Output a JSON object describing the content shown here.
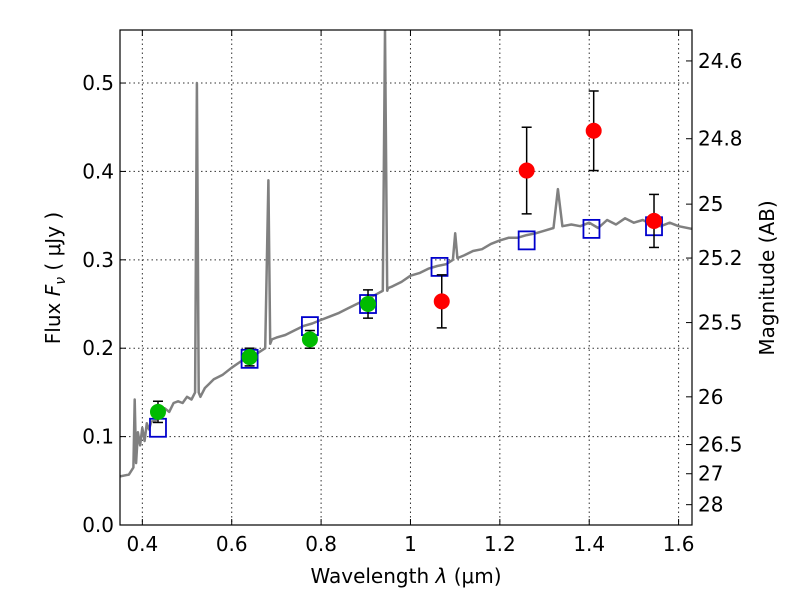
{
  "chart_data": {
    "type": "scatter",
    "title": "",
    "xlabel_text": "Wavelength",
    "xlabel_symbol": "λ",
    "xlabel_unit": "(μm)",
    "ylabel_text": "Flux",
    "ylabel_symbol": "F",
    "ylabel_subscript": "ν",
    "ylabel_unit": "( μJy )",
    "y2label": "Magnitude (AB)",
    "xlim": [
      0.35,
      1.63
    ],
    "ylim": [
      0.0,
      0.56
    ],
    "grid": true,
    "x_ticks": [
      {
        "value": 0.4,
        "label": "0.4"
      },
      {
        "value": 0.6,
        "label": "0.6"
      },
      {
        "value": 0.8,
        "label": "0.8"
      },
      {
        "value": 1.0,
        "label": "1"
      },
      {
        "value": 1.2,
        "label": "1.2"
      },
      {
        "value": 1.4,
        "label": "1.4"
      },
      {
        "value": 1.6,
        "label": "1.6"
      }
    ],
    "y_ticks": [
      {
        "value": 0.0,
        "label": "0.0"
      },
      {
        "value": 0.1,
        "label": "0.1"
      },
      {
        "value": 0.2,
        "label": "0.2"
      },
      {
        "value": 0.3,
        "label": "0.3"
      },
      {
        "value": 0.4,
        "label": "0.4"
      },
      {
        "value": 0.5,
        "label": "0.5"
      }
    ],
    "y2_ticks": [
      {
        "label": "24.6",
        "flux": 0.525
      },
      {
        "label": "24.8",
        "flux": 0.437
      },
      {
        "label": "25",
        "flux": 0.363
      },
      {
        "label": "25.2",
        "flux": 0.302
      },
      {
        "label": "25.5",
        "flux": 0.229
      },
      {
        "label": "26",
        "flux": 0.145
      },
      {
        "label": "26.5",
        "flux": 0.091
      },
      {
        "label": "27",
        "flux": 0.058
      },
      {
        "label": "28",
        "flux": 0.023
      }
    ],
    "series": [
      {
        "kind": "line",
        "color": "#808080",
        "x": [
          0.35,
          0.37,
          0.38,
          0.383,
          0.386,
          0.39,
          0.395,
          0.4,
          0.405,
          0.41,
          0.415,
          0.42,
          0.43,
          0.44,
          0.45,
          0.46,
          0.47,
          0.48,
          0.49,
          0.5,
          0.51,
          0.518,
          0.522,
          0.526,
          0.53,
          0.54,
          0.55,
          0.56,
          0.58,
          0.6,
          0.62,
          0.64,
          0.66,
          0.675,
          0.682,
          0.686,
          0.69,
          0.7,
          0.72,
          0.74,
          0.76,
          0.78,
          0.8,
          0.82,
          0.84,
          0.86,
          0.88,
          0.9,
          0.92,
          0.938,
          0.943,
          0.948,
          0.95,
          0.96,
          0.98,
          1.0,
          1.02,
          1.04,
          1.06,
          1.08,
          1.095,
          1.1,
          1.105,
          1.12,
          1.14,
          1.16,
          1.18,
          1.2,
          1.22,
          1.24,
          1.26,
          1.28,
          1.3,
          1.32,
          1.33,
          1.34,
          1.36,
          1.38,
          1.4,
          1.42,
          1.44,
          1.46,
          1.48,
          1.5,
          1.52,
          1.54,
          1.56,
          1.58,
          1.6,
          1.63
        ],
        "y": [
          0.055,
          0.057,
          0.065,
          0.142,
          0.07,
          0.105,
          0.09,
          0.11,
          0.095,
          0.115,
          0.108,
          0.117,
          0.118,
          0.13,
          0.132,
          0.128,
          0.138,
          0.14,
          0.138,
          0.145,
          0.142,
          0.15,
          0.5,
          0.15,
          0.145,
          0.155,
          0.16,
          0.165,
          0.17,
          0.178,
          0.185,
          0.19,
          0.195,
          0.2,
          0.39,
          0.205,
          0.21,
          0.212,
          0.215,
          0.22,
          0.225,
          0.228,
          0.232,
          0.236,
          0.24,
          0.245,
          0.25,
          0.255,
          0.26,
          0.265,
          0.56,
          0.265,
          0.268,
          0.27,
          0.275,
          0.282,
          0.285,
          0.29,
          0.293,
          0.295,
          0.3,
          0.33,
          0.302,
          0.305,
          0.31,
          0.312,
          0.318,
          0.322,
          0.325,
          0.325,
          0.328,
          0.33,
          0.333,
          0.336,
          0.38,
          0.338,
          0.34,
          0.338,
          0.342,
          0.336,
          0.345,
          0.34,
          0.347,
          0.342,
          0.345,
          0.34,
          0.338,
          0.342,
          0.338,
          0.335
        ]
      },
      {
        "kind": "square",
        "color": "#0000cc",
        "x": [
          0.435,
          0.64,
          0.775,
          0.905,
          1.065,
          1.26,
          1.405,
          1.545
        ],
        "y": [
          0.11,
          0.188,
          0.225,
          0.25,
          0.292,
          0.322,
          0.335,
          0.338
        ]
      },
      {
        "kind": "circle",
        "color": "#00bb00",
        "x": [
          0.435,
          0.64,
          0.775,
          0.905
        ],
        "y": [
          0.128,
          0.19,
          0.21,
          0.25
        ],
        "yerr": [
          0.012,
          0.01,
          0.01,
          0.016
        ]
      },
      {
        "kind": "circle",
        "color": "#ff0000",
        "x": [
          1.07,
          1.26,
          1.41,
          1.545
        ],
        "y": [
          0.253,
          0.401,
          0.446,
          0.344
        ],
        "yerr": [
          0.03,
          0.049,
          0.045,
          0.03
        ]
      }
    ]
  }
}
